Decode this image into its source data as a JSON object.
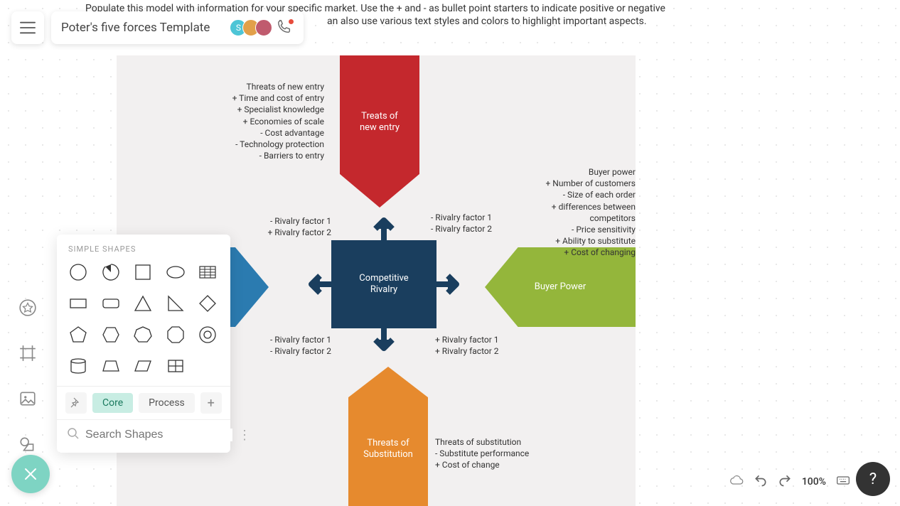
{
  "doc": {
    "title": "Poter's five forces Template",
    "instructions_line1": "Populate this model with information for your specific market. Use the + and - as bullet point starters to indicate positive or negative",
    "instructions_line2": "an also use various text styles and colors to highlight important aspects."
  },
  "collab": {
    "avatars": [
      {
        "bg": "#4dc5d6",
        "initial": "S"
      },
      {
        "bg": "#e2a04a",
        "initial": ""
      },
      {
        "bg": "#c05b6e",
        "initial": ""
      }
    ]
  },
  "shapes_panel": {
    "header": "SIMPLE SHAPES",
    "tabs": {
      "core": "Core",
      "process": "Process"
    },
    "search_placeholder": "Search Shapes"
  },
  "diagram": {
    "center": {
      "label_l1": "Competitive",
      "label_l2": "Rivalry",
      "color": "#1a3e5e"
    },
    "top": {
      "label_l1": "Treats of",
      "label_l2": "new entry",
      "color": "#c4282d"
    },
    "right": {
      "label": "Buyer Power",
      "color": "#94b63b"
    },
    "bottom": {
      "label_l1": "Threats of",
      "label_l2": "Substitution",
      "color": "#e68a2e"
    },
    "left": {
      "color": "#2b7bb0"
    }
  },
  "annotations": {
    "top_left": [
      "Threats of new entry",
      "+ Time and cost of entry",
      "+ Specialist knowledge",
      "+ Economies of scale",
      "- Cost advantage",
      "- Technology protection",
      "- Barriers to entry"
    ],
    "right_block": [
      "Buyer power",
      "+ Number of customers",
      "- Size of each order",
      "+ differences between",
      "competitors",
      "- Price sensitivity",
      "+ Ability to substitute",
      "+ Cost of changing"
    ],
    "mid_left_a": [
      "- Rivalry factor 1",
      "+ Rivalry factor 2"
    ],
    "mid_right_a": [
      "- Rivalry factor 1",
      "- Rivalry factor 2"
    ],
    "mid_left_b": [
      "- Rivalry factor 1",
      "- Rivalry factor 2"
    ],
    "mid_right_b": [
      "+ Rivalry factor 1",
      "+ Rivalry factor 2"
    ],
    "bottom_right": [
      "Threats of substitution",
      "- Substitute performance",
      "+ Cost of change"
    ]
  },
  "controls": {
    "zoom": "100%"
  },
  "colors": {
    "canvas_bg": "#f2f0f0",
    "arrow": "#1a3e5e",
    "fab": "#7ed4c3"
  }
}
